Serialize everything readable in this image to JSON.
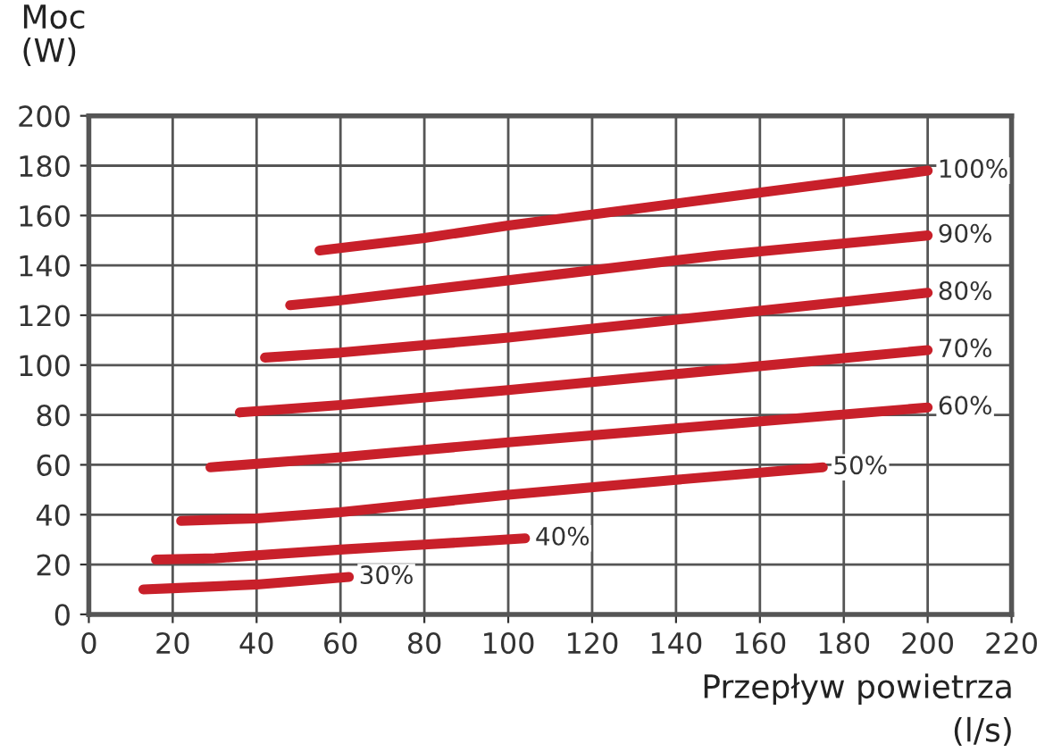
{
  "chart_data": {
    "type": "line",
    "ylabel": "Moc\n(W)",
    "xlabel": "Przepływ powietrza\n(l/s)",
    "xlim": [
      0,
      220
    ],
    "xticks": [
      0,
      20,
      40,
      60,
      80,
      100,
      120,
      140,
      160,
      180,
      200,
      220
    ],
    "ylim": [
      0,
      200
    ],
    "yticks": [
      0,
      20,
      40,
      60,
      80,
      100,
      120,
      140,
      160,
      180,
      200
    ],
    "grid": true,
    "legend": false,
    "marker": "none",
    "line_style": "solid",
    "series": [
      {
        "name": "30%",
        "color": "#c8202a",
        "x": [
          13,
          20,
          40,
          62
        ],
        "values": [
          10,
          10.5,
          12,
          15
        ]
      },
      {
        "name": "40%",
        "color": "#c8202a",
        "x": [
          16,
          30,
          60,
          80,
          104
        ],
        "values": [
          22,
          22.5,
          26,
          28,
          30.5
        ]
      },
      {
        "name": "50%",
        "color": "#c8202a",
        "x": [
          22,
          40,
          60,
          100,
          140,
          175
        ],
        "values": [
          37.5,
          38.5,
          41,
          48,
          54,
          59
        ]
      },
      {
        "name": "60%",
        "color": "#c8202a",
        "x": [
          29,
          60,
          100,
          150,
          200
        ],
        "values": [
          59,
          63,
          69,
          76,
          83
        ]
      },
      {
        "name": "70%",
        "color": "#c8202a",
        "x": [
          36,
          60,
          100,
          150,
          200
        ],
        "values": [
          81,
          84,
          90,
          98,
          106
        ]
      },
      {
        "name": "80%",
        "color": "#c8202a",
        "x": [
          42,
          60,
          100,
          150,
          200
        ],
        "values": [
          103,
          105,
          111,
          120,
          129
        ]
      },
      {
        "name": "90%",
        "color": "#c8202a",
        "x": [
          48,
          60,
          100,
          150,
          200
        ],
        "values": [
          124,
          126,
          134,
          144,
          152
        ]
      },
      {
        "name": "100%",
        "color": "#c8202a",
        "x": [
          55,
          80,
          100,
          150,
          200
        ],
        "values": [
          146,
          151,
          156,
          167,
          178
        ]
      }
    ]
  }
}
